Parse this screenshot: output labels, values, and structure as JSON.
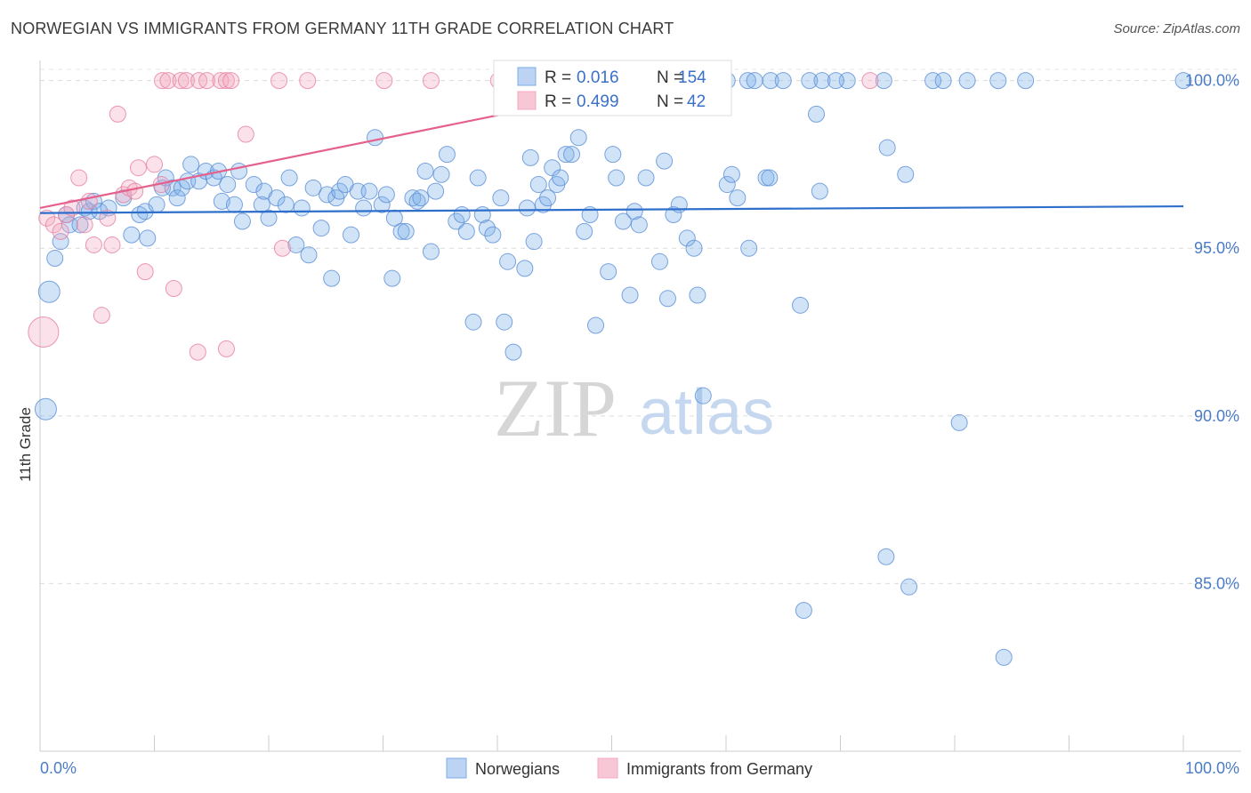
{
  "header": {
    "title": "NORWEGIAN VS IMMIGRANTS FROM GERMANY 11TH GRADE CORRELATION CHART",
    "source": "Source: ZipAtlas.com"
  },
  "watermark": {
    "zip": "ZIP",
    "atlas": "atlas"
  },
  "chart_data": {
    "type": "scatter",
    "title": "NORWEGIAN VS IMMIGRANTS FROM GERMANY 11TH GRADE CORRELATION CHART",
    "xlabel": "",
    "ylabel": "11th Grade",
    "xlim": [
      0,
      100
    ],
    "ylim": [
      80.0,
      100.6
    ],
    "x_tick_labels": [
      "0.0%",
      "100.0%"
    ],
    "y_ticks": [
      85.0,
      90.0,
      95.0,
      100.0
    ],
    "y_tick_labels": [
      "85.0%",
      "90.0%",
      "95.0%",
      "100.0%"
    ],
    "grid": true,
    "legend": {
      "position": "top-center",
      "entries": [
        {
          "r_label": "R =",
          "r_value": "0.016",
          "n_label": "N =",
          "n_value": "154"
        },
        {
          "r_label": "R =",
          "r_value": "0.499",
          "n_label": "N =",
          "n_value": "42"
        }
      ]
    },
    "series": [
      {
        "name": "Norwegians",
        "color": "#7aaee8",
        "stroke": "#5b8fd6",
        "trend": {
          "x": [
            0,
            100
          ],
          "y": [
            96.05,
            96.25
          ],
          "color": "#2f6fcc"
        },
        "points": [
          [
            0.5,
            90.2
          ],
          [
            0.8,
            93.7
          ],
          [
            1.3,
            94.7
          ],
          [
            1.8,
            95.2
          ],
          [
            2.3,
            96.0
          ],
          [
            2.6,
            95.7
          ],
          [
            3.5,
            95.7
          ],
          [
            3.9,
            96.2
          ],
          [
            4.3,
            96.1
          ],
          [
            4.7,
            96.4
          ],
          [
            5.2,
            96.1
          ],
          [
            6,
            96.2
          ],
          [
            7.3,
            96.5
          ],
          [
            8,
            95.4
          ],
          [
            8.7,
            96.0
          ],
          [
            9.2,
            96.1
          ],
          [
            9.4,
            95.3
          ],
          [
            10.2,
            96.3
          ],
          [
            10.7,
            96.8
          ],
          [
            11,
            97.1
          ],
          [
            11.6,
            96.8
          ],
          [
            12,
            96.5
          ],
          [
            12.4,
            96.8
          ],
          [
            12.9,
            97.0
          ],
          [
            13.2,
            97.5
          ],
          [
            13.9,
            97.0
          ],
          [
            14.5,
            97.3
          ],
          [
            15.2,
            97.1
          ],
          [
            15.6,
            97.3
          ],
          [
            15.9,
            96.4
          ],
          [
            16.4,
            96.9
          ],
          [
            17,
            96.3
          ],
          [
            17.4,
            97.3
          ],
          [
            17.7,
            95.8
          ],
          [
            18.7,
            96.9
          ],
          [
            19.4,
            96.3
          ],
          [
            19.6,
            96.7
          ],
          [
            20,
            95.9
          ],
          [
            20.7,
            96.5
          ],
          [
            21.5,
            96.3
          ],
          [
            21.8,
            97.1
          ],
          [
            22.9,
            96.2
          ],
          [
            22.4,
            95.1
          ],
          [
            23.5,
            94.8
          ],
          [
            23.9,
            96.8
          ],
          [
            24.6,
            95.6
          ],
          [
            25.1,
            96.6
          ],
          [
            25.5,
            94.1
          ],
          [
            25.9,
            96.5
          ],
          [
            26.2,
            96.7
          ],
          [
            26.7,
            96.9
          ],
          [
            27.2,
            95.4
          ],
          [
            27.8,
            96.7
          ],
          [
            28.3,
            96.2
          ],
          [
            28.8,
            96.7
          ],
          [
            29.3,
            98.3
          ],
          [
            29.9,
            96.3
          ],
          [
            30.3,
            96.6
          ],
          [
            30.8,
            94.1
          ],
          [
            31,
            95.9
          ],
          [
            31.6,
            95.5
          ],
          [
            32,
            95.5
          ],
          [
            32.6,
            96.5
          ],
          [
            33,
            96.4
          ],
          [
            33.3,
            96.5
          ],
          [
            33.7,
            97.3
          ],
          [
            34.2,
            94.9
          ],
          [
            34.6,
            96.7
          ],
          [
            35.1,
            97.2
          ],
          [
            35.6,
            97.8
          ],
          [
            36.4,
            95.8
          ],
          [
            36.9,
            96.0
          ],
          [
            37.3,
            95.5
          ],
          [
            37.9,
            92.8
          ],
          [
            38.3,
            97.1
          ],
          [
            38.7,
            96.0
          ],
          [
            39.1,
            95.6
          ],
          [
            39.6,
            95.4
          ],
          [
            40.3,
            96.5
          ],
          [
            40.6,
            92.8
          ],
          [
            40.9,
            94.6
          ],
          [
            41.4,
            91.9
          ],
          [
            42.4,
            94.4
          ],
          [
            42.6,
            96.2
          ],
          [
            42.9,
            97.7
          ],
          [
            43.2,
            95.2
          ],
          [
            43.6,
            96.9
          ],
          [
            44,
            96.3
          ],
          [
            44.4,
            96.5
          ],
          [
            44.8,
            97.4
          ],
          [
            45.2,
            96.9
          ],
          [
            45.5,
            97.1
          ],
          [
            46,
            97.8
          ],
          [
            46.5,
            97.8
          ],
          [
            47.1,
            98.3
          ],
          [
            47.6,
            95.5
          ],
          [
            48.1,
            96.0
          ],
          [
            48.6,
            92.7
          ],
          [
            49.7,
            94.3
          ],
          [
            50.1,
            97.8
          ],
          [
            50.4,
            97.1
          ],
          [
            51,
            95.8
          ],
          [
            51.6,
            93.6
          ],
          [
            52,
            96.1
          ],
          [
            52.4,
            95.7
          ],
          [
            53,
            97.1
          ],
          [
            54.2,
            94.6
          ],
          [
            54.6,
            97.6
          ],
          [
            54.9,
            93.5
          ],
          [
            55.4,
            96.0
          ],
          [
            55.9,
            96.3
          ],
          [
            56.6,
            95.3
          ],
          [
            57.2,
            95.0
          ],
          [
            57.5,
            93.6
          ],
          [
            58,
            90.6
          ],
          [
            60.1,
            96.9
          ],
          [
            60.5,
            97.2
          ],
          [
            61,
            96.5
          ],
          [
            62,
            95.0
          ],
          [
            63.5,
            97.1
          ],
          [
            63.8,
            97.1
          ],
          [
            66.5,
            93.3
          ],
          [
            67.9,
            99.0
          ],
          [
            68.2,
            96.7
          ],
          [
            70.6,
            100.0
          ],
          [
            74.1,
            98.0
          ],
          [
            75.7,
            97.2
          ],
          [
            78.1,
            100.0
          ],
          [
            79,
            100.0
          ],
          [
            81.1,
            100.0
          ],
          [
            66.8,
            84.2
          ],
          [
            74,
            85.8
          ],
          [
            76,
            84.9
          ],
          [
            80.4,
            89.8
          ],
          [
            84.3,
            82.8
          ],
          [
            56.8,
            100
          ],
          [
            60.1,
            100
          ],
          [
            61.9,
            100
          ],
          [
            62.5,
            100
          ],
          [
            63.9,
            100
          ],
          [
            65.0,
            100
          ],
          [
            67.3,
            100
          ],
          [
            68.4,
            100
          ],
          [
            69.6,
            100
          ],
          [
            73.8,
            100
          ],
          [
            83.8,
            100
          ],
          [
            86.2,
            100
          ],
          [
            100,
            100
          ]
        ]
      },
      {
        "name": "Immigrants from Germany",
        "color": "#f4a8c0",
        "stroke": "#e77fa0",
        "trend": {
          "x": [
            0,
            55
          ],
          "y": [
            96.2,
            100.0
          ],
          "color": "#e5608c"
        },
        "points": [
          [
            0.3,
            92.5
          ],
          [
            0.6,
            95.9
          ],
          [
            1.2,
            95.7
          ],
          [
            1.8,
            95.5
          ],
          [
            2.3,
            96.0
          ],
          [
            2.8,
            96.2
          ],
          [
            3.4,
            97.1
          ],
          [
            3.9,
            95.7
          ],
          [
            4.3,
            96.4
          ],
          [
            4.7,
            95.1
          ],
          [
            5.4,
            93.0
          ],
          [
            5.9,
            95.9
          ],
          [
            6.3,
            95.1
          ],
          [
            6.8,
            99.0
          ],
          [
            7.3,
            96.6
          ],
          [
            7.8,
            96.8
          ],
          [
            8.3,
            96.7
          ],
          [
            8.6,
            97.4
          ],
          [
            9.2,
            94.3
          ],
          [
            10,
            97.5
          ],
          [
            10.6,
            96.9
          ],
          [
            11.7,
            93.8
          ],
          [
            13.8,
            91.9
          ],
          [
            16.3,
            92.0
          ],
          [
            18,
            98.4
          ],
          [
            21.2,
            95.0
          ],
          [
            10.7,
            100
          ],
          [
            11.2,
            100
          ],
          [
            12.3,
            100
          ],
          [
            12.8,
            100
          ],
          [
            13.9,
            100
          ],
          [
            14.6,
            100
          ],
          [
            15.8,
            100
          ],
          [
            16.3,
            100
          ],
          [
            16.7,
            100
          ],
          [
            20.9,
            100
          ],
          [
            23.4,
            100
          ],
          [
            30.1,
            100
          ],
          [
            34.2,
            100
          ],
          [
            40.1,
            100
          ],
          [
            50,
            100
          ],
          [
            72.6,
            100
          ]
        ]
      }
    ]
  },
  "bottom_legend": [
    {
      "label": "Norwegians"
    },
    {
      "label": "Immigrants from Germany"
    }
  ]
}
